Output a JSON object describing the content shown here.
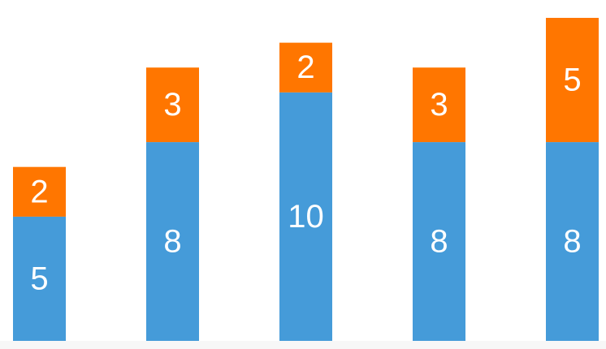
{
  "chart_data": {
    "type": "bar",
    "stacked": true,
    "categories": [
      "",
      "",
      "",
      "",
      ""
    ],
    "series": [
      {
        "values": [
          5,
          8,
          10,
          8,
          8
        ],
        "color": "#459bd9"
      },
      {
        "values": [
          2,
          3,
          2,
          3,
          5
        ],
        "color": "#ff7600"
      }
    ],
    "ylim": [
      0,
      13
    ],
    "grid": false,
    "axes_visible": false,
    "legend": "none",
    "data_labels": true
  }
}
